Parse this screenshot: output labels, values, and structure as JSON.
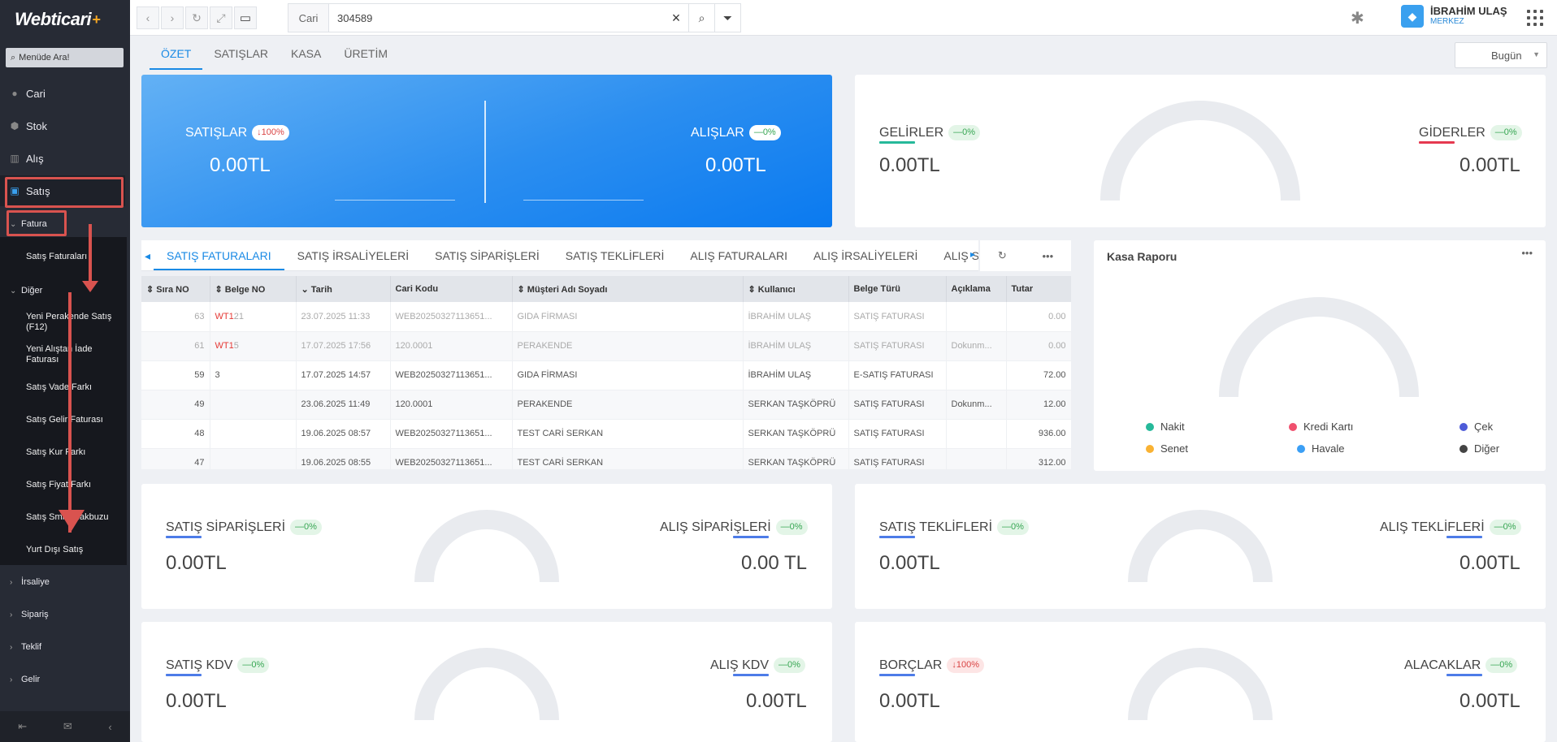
{
  "app": {
    "logo": "Webticari",
    "logo_plus": "+"
  },
  "sidebar": {
    "search_placeholder": "Menüde Ara!",
    "items": [
      {
        "label": "Cari"
      },
      {
        "label": "Stok"
      },
      {
        "label": "Alış"
      },
      {
        "label": "Satış"
      }
    ],
    "fatura": "Fatura",
    "satis_faturalari": "Satış Faturaları",
    "diger": "Diğer",
    "diger_items": [
      "Yeni Perakende Satış (F12)",
      "Yeni Alıştan İade Faturası",
      "Satış Vade Farkı",
      "Satış Gelir Faturası",
      "Satış Kur Farkı",
      "Satış Fiyat Farkı",
      "Satış Smm Makbuzu",
      "Yurt Dışı Satış"
    ],
    "groups": [
      "İrsaliye",
      "Sipariş",
      "Teklif",
      "Gelir"
    ]
  },
  "topbar": {
    "search_label": "Cari",
    "search_value": "304589",
    "user_name": "İBRAHİM ULAŞ",
    "user_branch": "MERKEZ"
  },
  "tabs": [
    "ÖZET",
    "SATIŞLAR",
    "KASA",
    "ÜRETİM"
  ],
  "date_filter": "Bugün",
  "kpi": {
    "satislar": {
      "label": "SATIŞLAR",
      "badge": "↓100%",
      "value": "0.00TL"
    },
    "alislar": {
      "label": "ALIŞLAR",
      "badge": "—0%",
      "value": "0.00TL"
    },
    "gelirler": {
      "label": "GELİRLER",
      "badge": "—0%",
      "value": "0.00TL"
    },
    "giderler": {
      "label": "GİDERLER",
      "badge": "—0%",
      "value": "0.00TL"
    },
    "satis_siparisleri": {
      "label": "SATIŞ SİPARİŞLERİ",
      "badge": "—0%",
      "value": "0.00TL"
    },
    "alis_siparisleri": {
      "label": "ALIŞ SİPARİŞLERİ",
      "badge": "—0%",
      "value": "0.00 TL"
    },
    "satis_teklifleri": {
      "label": "SATIŞ TEKLİFLERİ",
      "badge": "—0%",
      "value": "0.00TL"
    },
    "alis_teklifleri": {
      "label": "ALIŞ TEKLİFLERİ",
      "badge": "—0%",
      "value": "0.00TL"
    },
    "satis_kdv": {
      "label": "SATIŞ KDV",
      "badge": "—0%",
      "value": "0.00TL"
    },
    "alis_kdv": {
      "label": "ALIŞ KDV",
      "badge": "—0%",
      "value": "0.00TL"
    },
    "borclar": {
      "label": "BORÇLAR",
      "badge": "↓100%",
      "value": "0.00TL"
    },
    "alacaklar": {
      "label": "ALACAKLAR",
      "badge": "—0%",
      "value": "0.00TL"
    }
  },
  "doc_tabs": [
    "SATIŞ FATURALARI",
    "SATIŞ İRSALİYELERİ",
    "SATIŞ SİPARİŞLERİ",
    "SATIŞ TEKLİFLERİ",
    "ALIŞ FATURALARI",
    "ALIŞ İRSALİYELERİ",
    "ALIŞ SİPARİ"
  ],
  "table": {
    "headers": [
      "Sıra NO",
      "Belge NO",
      "Tarih",
      "Cari Kodu",
      "Müşteri Adı Soyadı",
      "Kullanıcı",
      "Belge Türü",
      "Açıklama",
      "Tutar"
    ],
    "rows": [
      {
        "sira": "63",
        "belge_red": "WT1",
        "belge": "21",
        "tarih": "23.07.2025 11:33",
        "cari": "WEB20250327113651...",
        "musteri": "GIDA FİRMASI",
        "kullanici": "İBRAHİM ULAŞ",
        "tur": "SATIŞ FATURASI",
        "aciklama": "",
        "tutar": "0.00"
      },
      {
        "sira": "61",
        "belge_red": "WT1",
        "belge": "5",
        "tarih": "17.07.2025 17:56",
        "cari": "120.0001",
        "musteri": "PERAKENDE",
        "kullanici": "İBRAHİM ULAŞ",
        "tur": "SATIŞ FATURASI",
        "aciklama": "Dokunm...",
        "tutar": "0.00"
      },
      {
        "sira": "59",
        "belge_red": "",
        "belge": "3",
        "tarih": "17.07.2025 14:57",
        "cari": "WEB20250327113651...",
        "musteri": "GIDA FİRMASI",
        "kullanici": "İBRAHİM ULAŞ",
        "tur": "E-SATIŞ FATURASI",
        "aciklama": "",
        "tutar": "72.00"
      },
      {
        "sira": "49",
        "belge_red": "",
        "belge": "",
        "tarih": "23.06.2025 11:49",
        "cari": "120.0001",
        "musteri": "PERAKENDE",
        "kullanici": "SERKAN TAŞKÖPRÜ",
        "tur": "SATIŞ FATURASI",
        "aciklama": "Dokunm...",
        "tutar": "12.00"
      },
      {
        "sira": "48",
        "belge_red": "",
        "belge": "",
        "tarih": "19.06.2025 08:57",
        "cari": "WEB20250327113651...",
        "musteri": "TEST CARİ SERKAN",
        "kullanici": "SERKAN TAŞKÖPRÜ",
        "tur": "SATIŞ FATURASI",
        "aciklama": "",
        "tutar": "936.00"
      },
      {
        "sira": "47",
        "belge_red": "",
        "belge": "",
        "tarih": "19.06.2025 08:55",
        "cari": "WEB20250327113651...",
        "musteri": "TEST CARİ SERKAN",
        "kullanici": "SERKAN TAŞKÖPRÜ",
        "tur": "SATIŞ FATURASI",
        "aciklama": "",
        "tutar": "312.00"
      }
    ]
  },
  "kasa": {
    "title": "Kasa Raporu",
    "legend": [
      {
        "label": "Nakit",
        "color": "#26b99a"
      },
      {
        "label": "Kredi Kartı",
        "color": "#f0506e"
      },
      {
        "label": "Çek",
        "color": "#4d5bd8"
      },
      {
        "label": "Senet",
        "color": "#f9b233"
      },
      {
        "label": "Havale",
        "color": "#3b9ff5"
      },
      {
        "label": "Diğer",
        "color": "#444444"
      }
    ]
  }
}
